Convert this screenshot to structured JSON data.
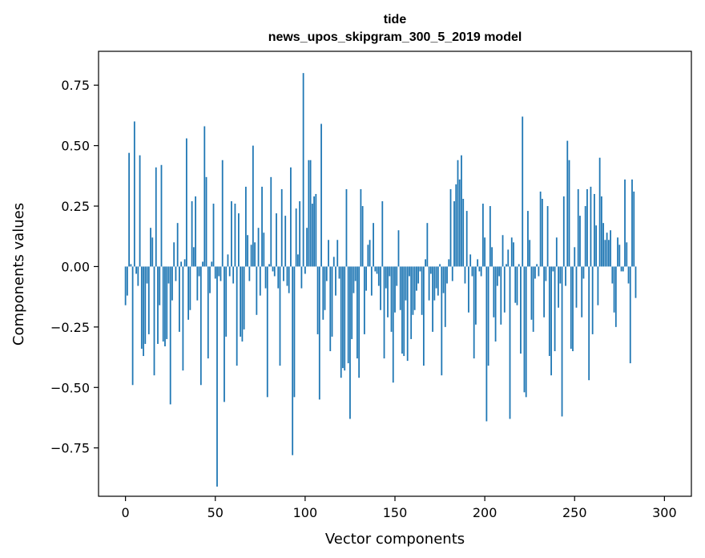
{
  "chart_data": {
    "type": "bar",
    "title": "tide",
    "subtitle": "news_upos_skipgram_300_5_2019 model",
    "xlabel": "Vector components",
    "ylabel": "Components values",
    "xlim": [
      -15,
      315
    ],
    "ylim": [
      -0.95,
      0.89
    ],
    "xticks": [
      0,
      50,
      100,
      150,
      200,
      250,
      300
    ],
    "yticks": [
      -0.75,
      -0.5,
      -0.25,
      0.0,
      0.25,
      0.5,
      0.75
    ],
    "xtick_labels": [
      "0",
      "50",
      "100",
      "150",
      "200",
      "250",
      "300"
    ],
    "ytick_labels": [
      "−0.75",
      "−0.50",
      "−0.25",
      "0.00",
      "0.25",
      "0.50",
      "0.75"
    ],
    "bar_color": "#1f77b4",
    "values": [
      -0.16,
      -0.12,
      0.47,
      0.01,
      -0.49,
      0.6,
      -0.03,
      -0.08,
      0.46,
      -0.34,
      -0.37,
      -0.32,
      -0.07,
      -0.28,
      0.16,
      0.12,
      -0.45,
      0.41,
      -0.32,
      -0.16,
      0.42,
      -0.31,
      -0.33,
      -0.3,
      -0.07,
      -0.57,
      -0.14,
      0.1,
      -0.06,
      0.18,
      -0.27,
      0.02,
      -0.43,
      0.03,
      0.53,
      -0.22,
      -0.18,
      0.27,
      0.08,
      0.29,
      -0.14,
      -0.04,
      -0.49,
      0.02,
      0.58,
      0.37,
      -0.38,
      -0.11,
      0.02,
      0.26,
      -0.05,
      -0.91,
      -0.04,
      -0.06,
      0.44,
      -0.56,
      -0.29,
      0.05,
      -0.04,
      0.27,
      -0.07,
      0.26,
      -0.41,
      0.22,
      -0.29,
      -0.31,
      -0.26,
      0.33,
      0.13,
      -0.06,
      0.09,
      0.5,
      0.1,
      -0.2,
      0.16,
      -0.12,
      0.33,
      0.14,
      -0.09,
      -0.54,
      0.01,
      0.37,
      -0.02,
      -0.04,
      0.22,
      -0.09,
      -0.41,
      0.32,
      -0.06,
      0.21,
      -0.08,
      -0.11,
      0.41,
      -0.78,
      -0.54,
      0.24,
      0.05,
      0.27,
      -0.09,
      0.8,
      -0.03,
      0.16,
      0.44,
      0.44,
      0.26,
      0.29,
      0.3,
      -0.28,
      -0.55,
      0.59,
      -0.22,
      -0.18,
      -0.06,
      0.11,
      -0.35,
      -0.29,
      0.04,
      -0.12,
      0.11,
      -0.05,
      -0.46,
      -0.42,
      -0.43,
      0.32,
      -0.4,
      -0.63,
      -0.3,
      -0.11,
      -0.06,
      -0.38,
      -0.46,
      0.32,
      0.25,
      -0.28,
      -0.1,
      0.09,
      0.11,
      -0.12,
      0.18,
      -0.02,
      -0.03,
      -0.08,
      -0.18,
      0.27,
      -0.38,
      -0.09,
      -0.21,
      -0.04,
      -0.27,
      -0.48,
      -0.19,
      -0.08,
      0.15,
      -0.18,
      -0.36,
      -0.37,
      -0.14,
      -0.39,
      -0.04,
      -0.3,
      -0.2,
      -0.18,
      -0.1,
      -0.07,
      -0.02,
      -0.2,
      -0.41,
      0.03,
      0.18,
      -0.14,
      -0.03,
      -0.27,
      -0.14,
      -0.09,
      -0.12,
      0.01,
      -0.45,
      -0.11,
      -0.25,
      -0.07,
      0.03,
      0.32,
      -0.06,
      0.27,
      0.34,
      0.44,
      0.36,
      0.46,
      0.28,
      -0.07,
      0.23,
      -0.19,
      0.05,
      -0.04,
      -0.38,
      -0.24,
      0.03,
      -0.02,
      -0.04,
      0.26,
      0.12,
      -0.64,
      -0.41,
      0.25,
      0.08,
      -0.21,
      -0.31,
      -0.08,
      -0.04,
      -0.24,
      0.13,
      -0.19,
      0.01,
      0.07,
      -0.63,
      0.12,
      0.1,
      -0.15,
      -0.16,
      0.01,
      -0.36,
      0.62,
      -0.52,
      -0.54,
      0.23,
      0.11,
      -0.22,
      -0.27,
      -0.05,
      0.01,
      -0.04,
      0.31,
      0.28,
      -0.21,
      -0.06,
      0.25,
      -0.37,
      -0.45,
      -0.02,
      -0.35,
      0.12,
      -0.17,
      -0.07,
      -0.62,
      0.29,
      -0.08,
      0.52,
      0.44,
      -0.34,
      -0.35,
      0.08,
      -0.17,
      0.32,
      0.21,
      -0.21,
      -0.05,
      0.25,
      0.32,
      -0.47,
      0.33,
      -0.28,
      0.3,
      0.17,
      -0.16,
      0.45,
      0.29,
      0.18,
      0.11,
      0.14,
      0.11,
      0.15,
      -0.07,
      -0.19,
      -0.25,
      0.12,
      0.09,
      -0.02,
      -0.02,
      0.36,
      0.1,
      -0.07,
      -0.4,
      0.36,
      0.31,
      -0.13
    ]
  }
}
